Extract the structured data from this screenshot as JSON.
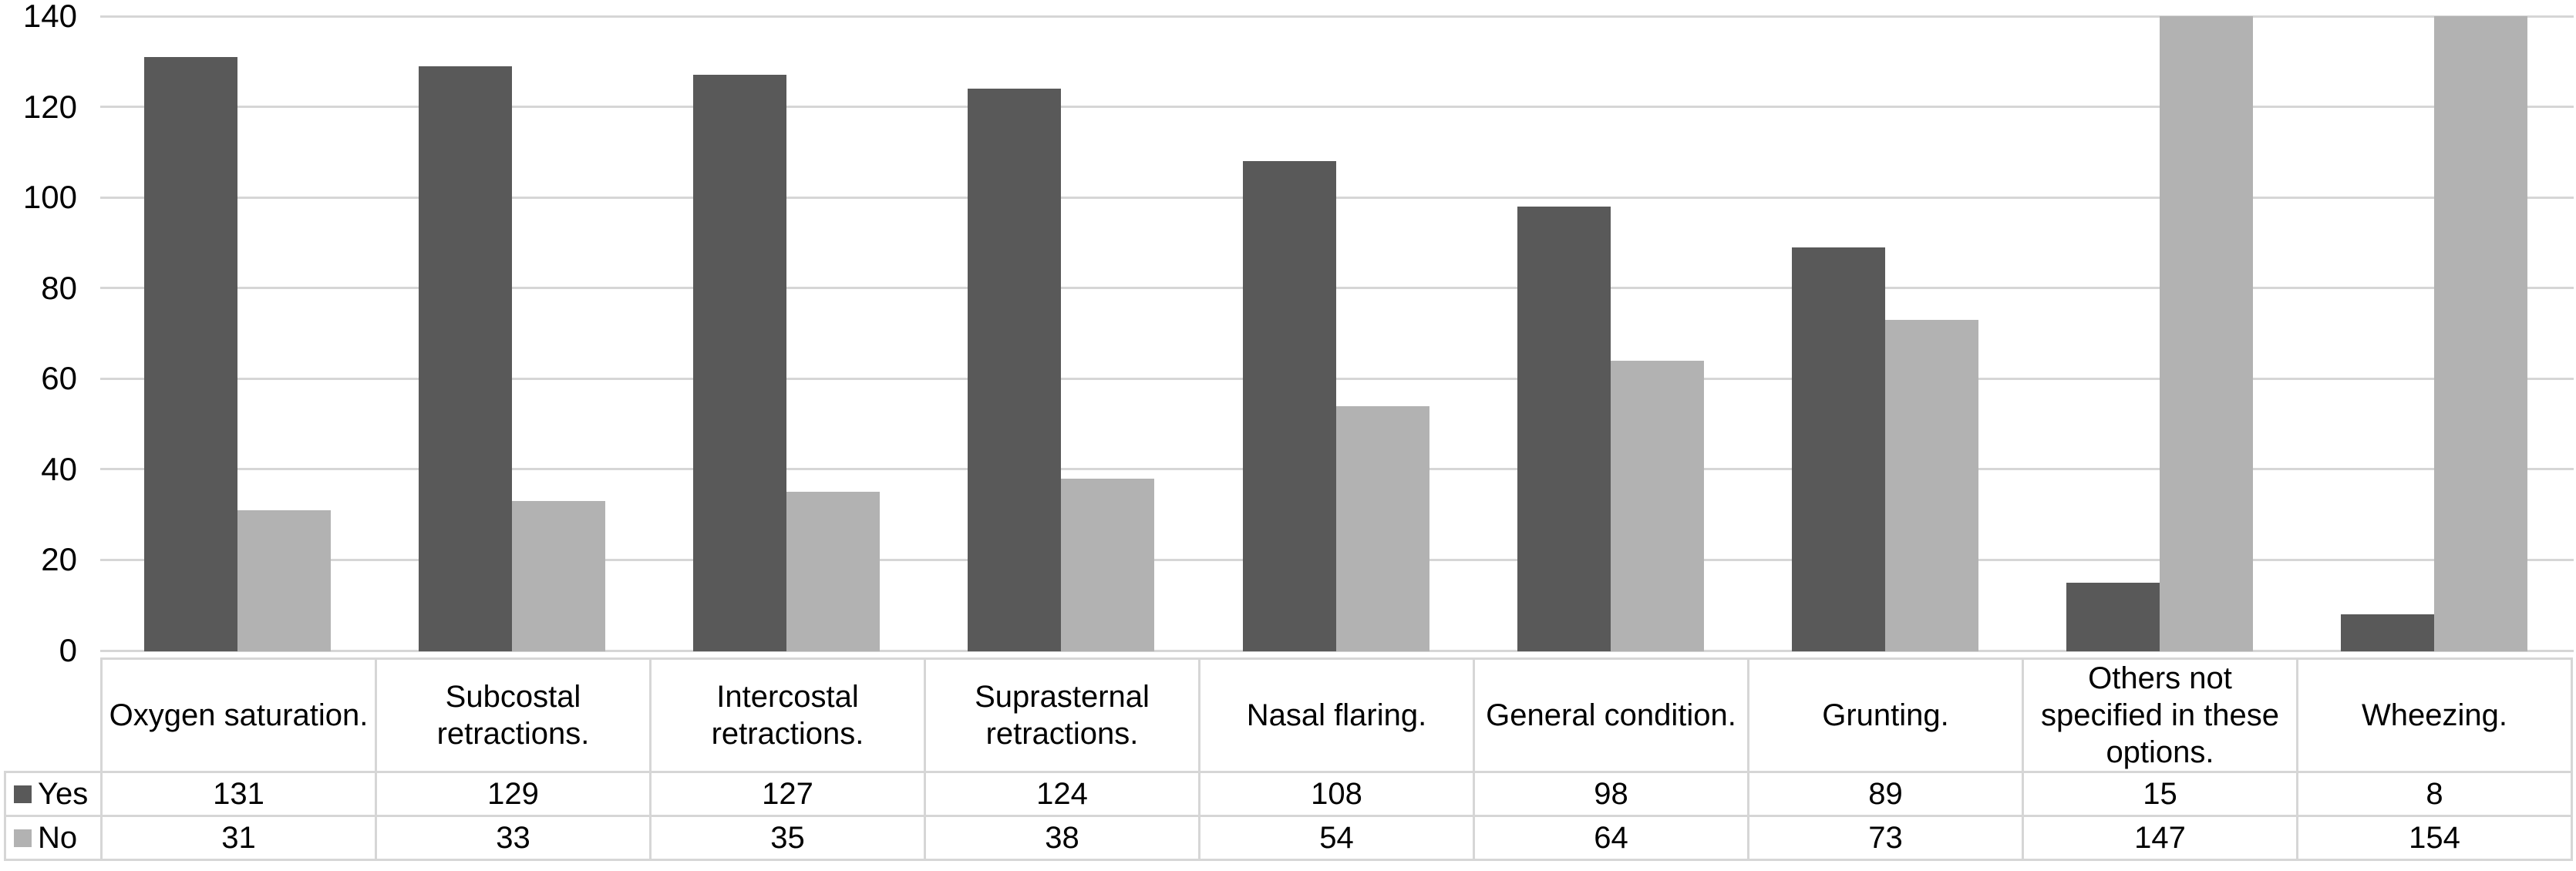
{
  "chart_data": {
    "type": "bar",
    "title": "",
    "xlabel": "",
    "ylabel": "",
    "categories": [
      "Oxygen saturation.",
      "Subcostal retractions.",
      "Intercostal retractions.",
      "Suprasternal retractions.",
      "Nasal flaring.",
      "General condition.",
      "Grunting.",
      "Others not specified in these options.",
      "Wheezing."
    ],
    "series": [
      {
        "name": "Yes",
        "color": "#595959",
        "values": [
          131,
          129,
          127,
          124,
          108,
          98,
          89,
          15,
          8
        ]
      },
      {
        "name": "No",
        "color": "#b2b2b2",
        "values": [
          31,
          33,
          35,
          38,
          54,
          64,
          73,
          147,
          154
        ]
      }
    ],
    "ylim": [
      0,
      140
    ],
    "yticks": [
      0,
      20,
      40,
      60,
      80,
      100,
      120,
      140
    ],
    "grid": true,
    "gridline_color": "#d6d6d6",
    "legend_position": "data-table-left",
    "data_table_shown": true,
    "bars_clipped_at_ymax": [
      147,
      154
    ]
  }
}
